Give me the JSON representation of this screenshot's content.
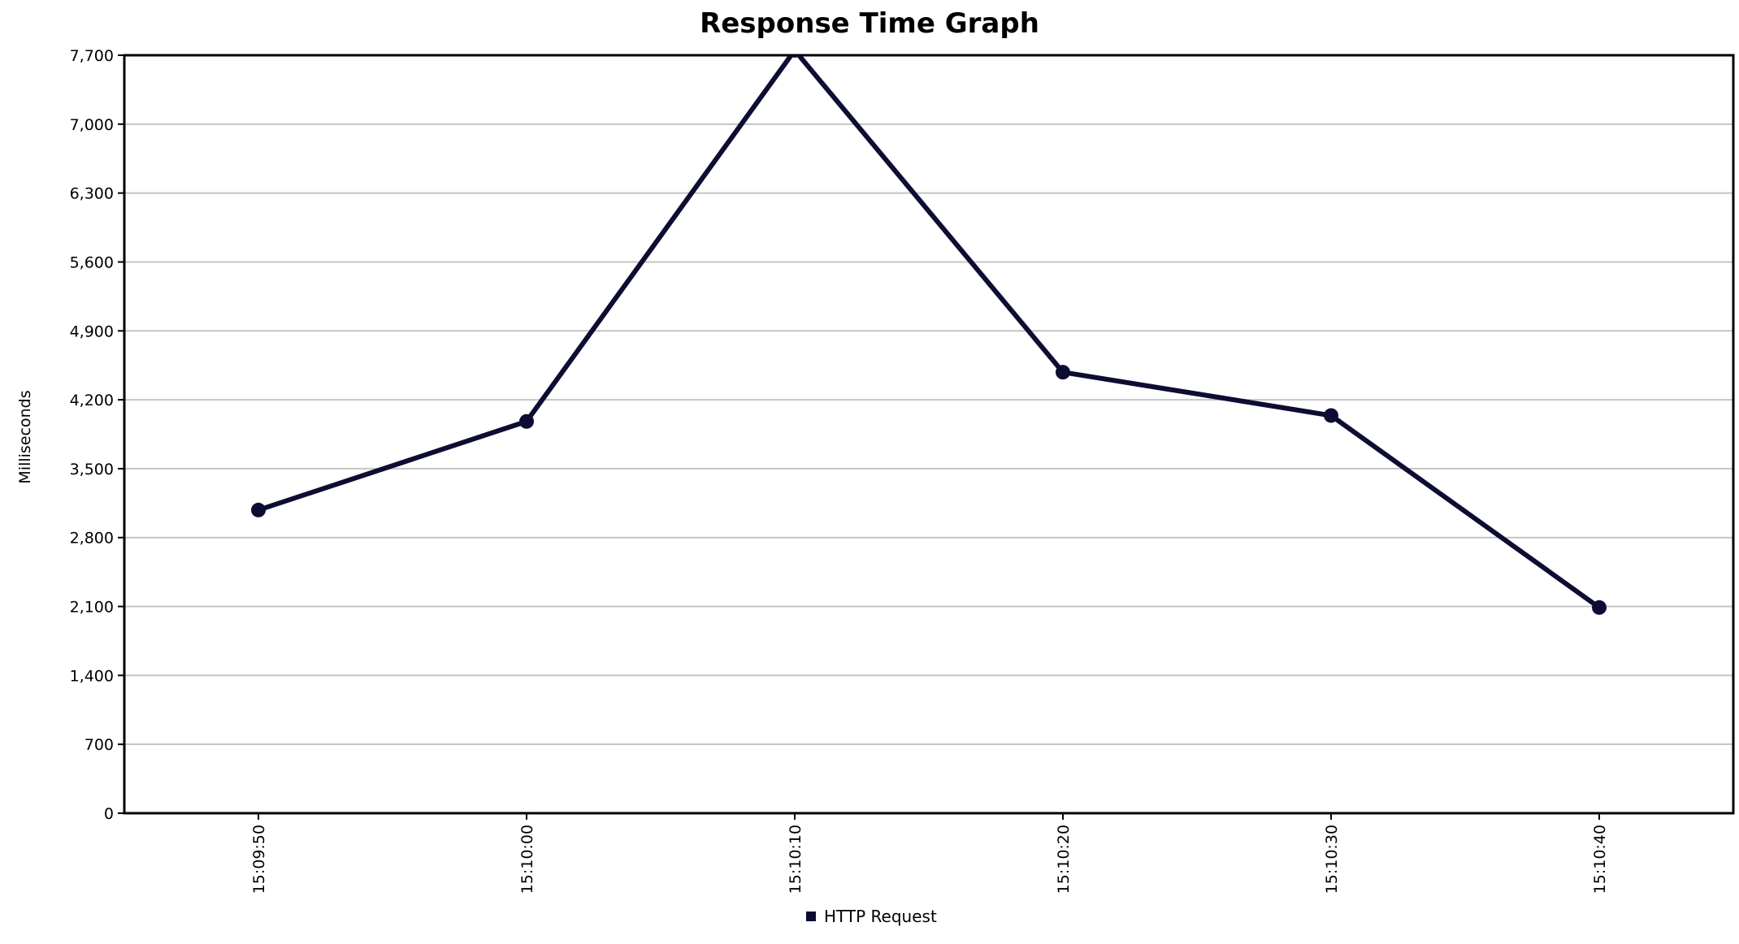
{
  "chart_data": {
    "type": "line",
    "title": "Response Time Graph",
    "xlabel": "",
    "ylabel": "Milliseconds",
    "categories": [
      "15:09:50",
      "15:10:00",
      "15:10:10",
      "15:10:20",
      "15:10:30",
      "15:10:40"
    ],
    "series": [
      {
        "name": "HTTP Request",
        "values": [
          3080,
          3980,
          7750,
          4480,
          4040,
          2090
        ],
        "color": "#0d0d33"
      }
    ],
    "ylim": [
      0,
      7700
    ],
    "yticks": [
      "0",
      "700",
      "1,400",
      "2,100",
      "2,800",
      "3,500",
      "4,200",
      "4,900",
      "5,600",
      "6,300",
      "7,000",
      "7,700"
    ],
    "grid": true,
    "legend_position": "bottom-center",
    "grid_color": "#c4c4c4",
    "axis_color": "#000000"
  }
}
